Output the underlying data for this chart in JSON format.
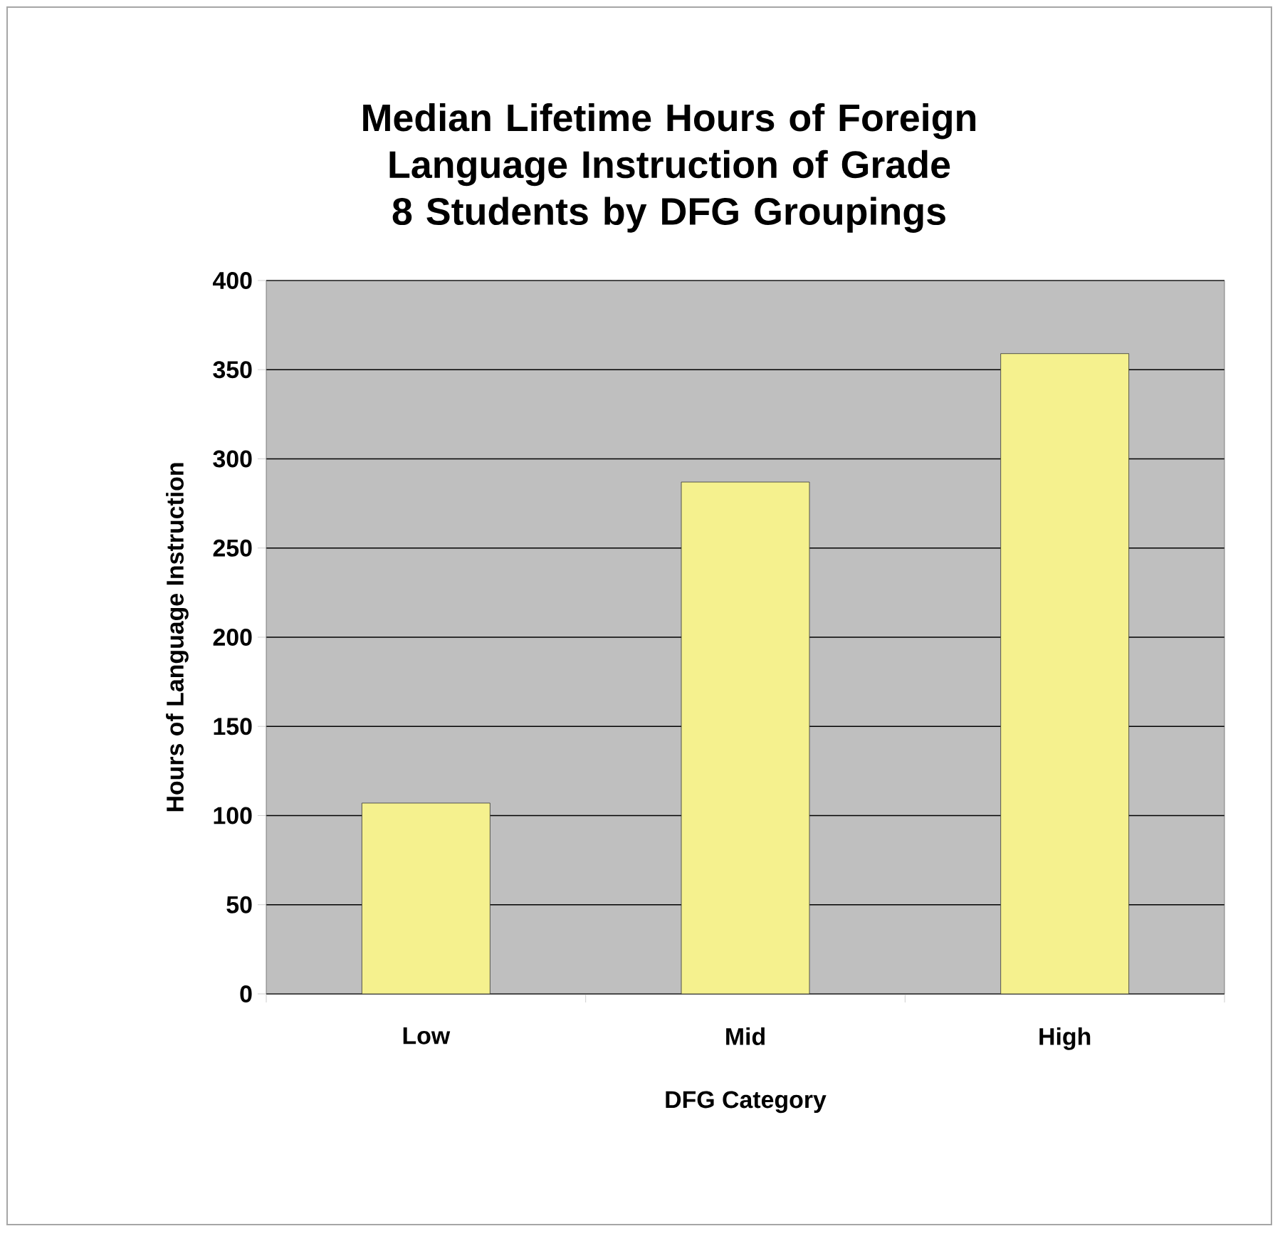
{
  "chart_data": {
    "type": "bar",
    "title": "Median Lifetime Hours of Foreign Language Instruction of Grade 8 Students by DFG Groupings",
    "xlabel": "DFG Category",
    "ylabel": "Hours of Language Instruction",
    "categories": [
      "Low",
      "Mid",
      "High"
    ],
    "values": [
      107,
      287,
      359
    ],
    "color": "#f5f18e",
    "ylim": [
      0,
      400
    ],
    "yticks": [
      0,
      50,
      100,
      150,
      200,
      250,
      300,
      350,
      400
    ],
    "grid": "y"
  }
}
